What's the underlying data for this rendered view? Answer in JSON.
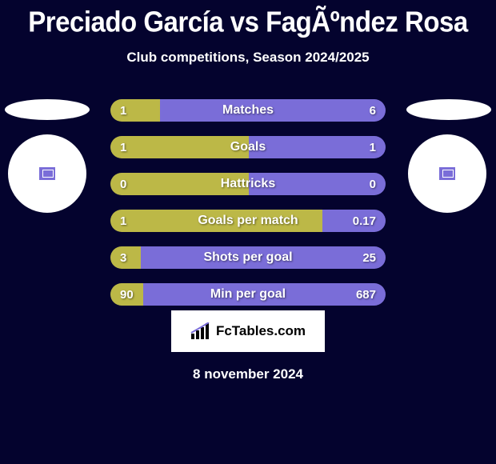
{
  "title": "Preciado García vs FagÃºndez Rosa",
  "subtitle": "Club competitions, Season 2024/2025",
  "date": "8 november 2024",
  "logo_text": "FcTables.com",
  "colors": {
    "background": "#04032e",
    "left_bar": "#bcb847",
    "right_bar": "#7a6dd8",
    "text": "#ffffff"
  },
  "stats": [
    {
      "label": "Matches",
      "left_val": "1",
      "right_val": "6",
      "left_pct": 18,
      "right_pct": 82
    },
    {
      "label": "Goals",
      "left_val": "1",
      "right_val": "1",
      "left_pct": 50.2,
      "right_pct": 49.8
    },
    {
      "label": "Hattricks",
      "left_val": "0",
      "right_val": "0",
      "left_pct": 50.2,
      "right_pct": 49.8
    },
    {
      "label": "Goals per match",
      "left_val": "1",
      "right_val": "0.17",
      "left_pct": 77,
      "right_pct": 23
    },
    {
      "label": "Shots per goal",
      "left_val": "3",
      "right_val": "25",
      "left_pct": 11,
      "right_pct": 89
    },
    {
      "label": "Min per goal",
      "left_val": "90",
      "right_val": "687",
      "left_pct": 12,
      "right_pct": 88
    }
  ]
}
